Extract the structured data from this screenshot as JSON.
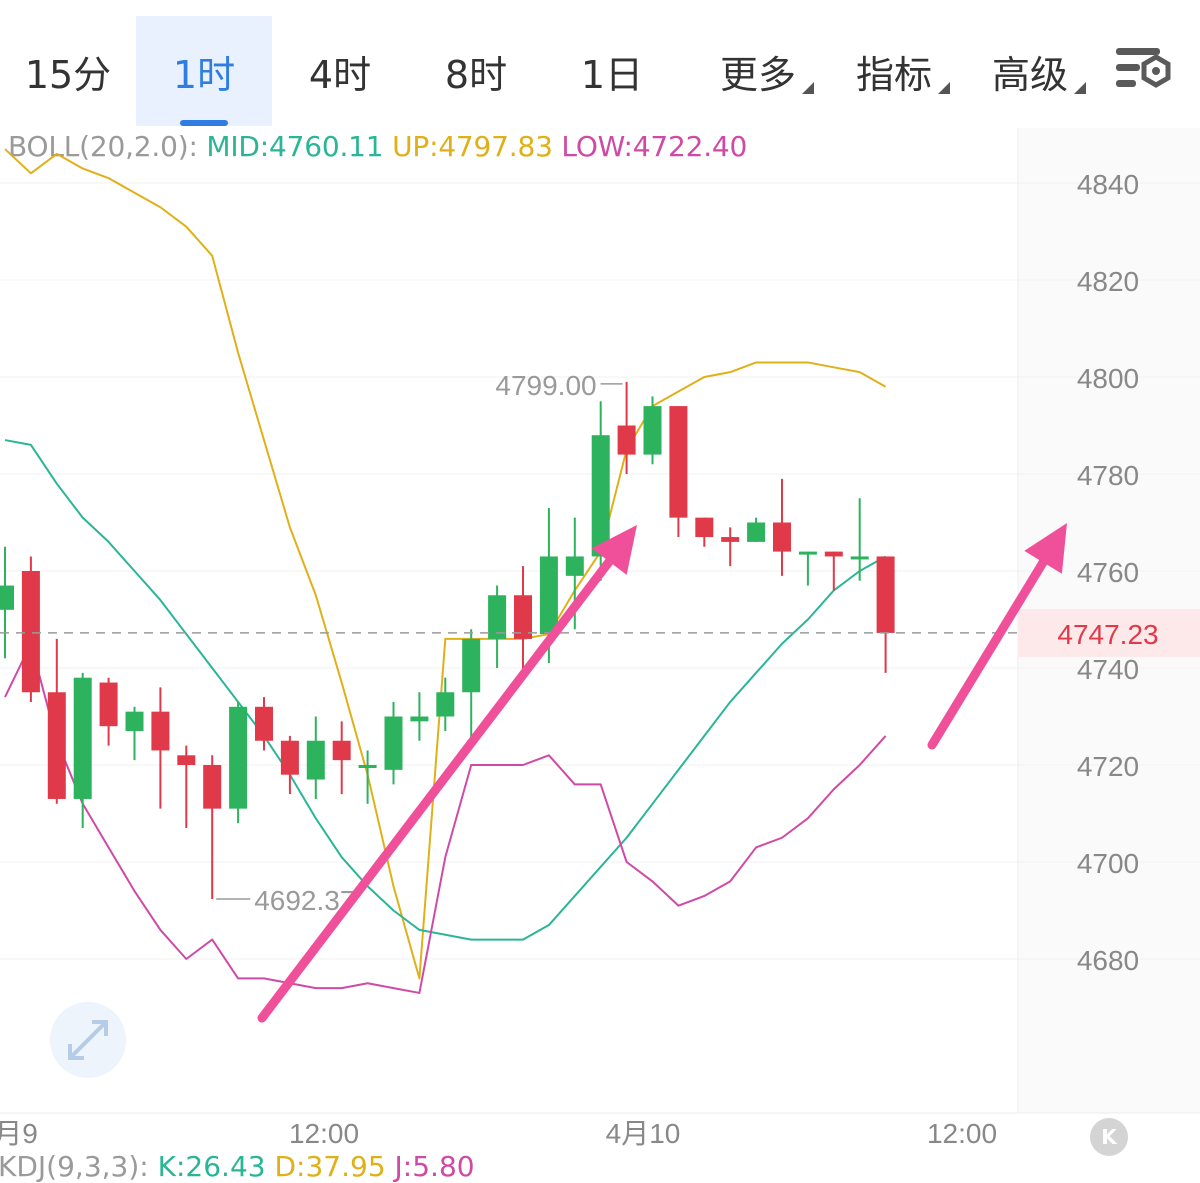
{
  "toolbar": {
    "tabs": [
      {
        "label": "15分"
      },
      {
        "label": "1时"
      },
      {
        "label": "4时"
      },
      {
        "label": "8时"
      },
      {
        "label": "1日"
      },
      {
        "label": "更多"
      },
      {
        "label": "指标"
      },
      {
        "label": "高级"
      }
    ],
    "active_tab": "1时",
    "settings_icon": "chart-settings-icon"
  },
  "indicator": {
    "name": "BOLL(20,2.0):",
    "mid": "MID:4760.11",
    "up": "UP:4797.83",
    "low": "LOW:4722.40"
  },
  "kdj": {
    "name": "KDJ(9,3,3):",
    "k": "K:26.43",
    "d": "D:37.95",
    "j": "J:5.80"
  },
  "colors": {
    "up": "#2db35d",
    "down": "#e0394a",
    "mid": "#2bb597",
    "upper": "#e0b019",
    "lower": "#cf4aa6",
    "arrow": "#f0509a",
    "accent": "#2f7de1"
  },
  "chart_data": {
    "type": "candlestick",
    "interval": "1时",
    "y_ticks": [
      4840,
      4820,
      4800,
      4780,
      4760,
      4740,
      4720,
      4700,
      4680
    ],
    "ylim": [
      4676,
      4856
    ],
    "x_labels": [
      "月9",
      "12:00",
      "4月10",
      "12:00"
    ],
    "current_price": 4747.23,
    "high_marker": {
      "label": "4799.00",
      "value": 4799.0
    },
    "low_marker": {
      "label": "4692.37",
      "value": 4692.37
    },
    "candles": [
      {
        "o": 4752,
        "c": 4757,
        "h": 4765,
        "l": 4742
      },
      {
        "o": 4760,
        "c": 4735,
        "h": 4763,
        "l": 4733
      },
      {
        "o": 4735,
        "c": 4713,
        "h": 4746,
        "l": 4712
      },
      {
        "o": 4713,
        "c": 4738,
        "h": 4739,
        "l": 4707
      },
      {
        "o": 4737,
        "c": 4728,
        "h": 4738,
        "l": 4724
      },
      {
        "o": 4727,
        "c": 4731,
        "h": 4732,
        "l": 4721
      },
      {
        "o": 4731,
        "c": 4723,
        "h": 4736,
        "l": 4711
      },
      {
        "o": 4722,
        "c": 4720,
        "h": 4724,
        "l": 4707
      },
      {
        "o": 4720,
        "c": 4711,
        "h": 4722,
        "l": 4692.37
      },
      {
        "o": 4711,
        "c": 4732,
        "h": 4733,
        "l": 4708
      },
      {
        "o": 4732,
        "c": 4725,
        "h": 4734,
        "l": 4723
      },
      {
        "o": 4725,
        "c": 4718,
        "h": 4726,
        "l": 4714
      },
      {
        "o": 4717,
        "c": 4725,
        "h": 4730,
        "l": 4713
      },
      {
        "o": 4725,
        "c": 4721,
        "h": 4729,
        "l": 4714
      },
      {
        "o": 4720,
        "c": 4720,
        "h": 4723,
        "l": 4712
      },
      {
        "o": 4719,
        "c": 4730,
        "h": 4733,
        "l": 4716
      },
      {
        "o": 4729,
        "c": 4730,
        "h": 4735,
        "l": 4725
      },
      {
        "o": 4730,
        "c": 4735,
        "h": 4738,
        "l": 4727
      },
      {
        "o": 4735,
        "c": 4746,
        "h": 4748,
        "l": 4725
      },
      {
        "o": 4746,
        "c": 4755,
        "h": 4757,
        "l": 4740
      },
      {
        "o": 4755,
        "c": 4746,
        "h": 4761,
        "l": 4738
      },
      {
        "o": 4747,
        "c": 4763,
        "h": 4773,
        "l": 4741
      },
      {
        "o": 4759,
        "c": 4763,
        "h": 4771,
        "l": 4748
      },
      {
        "o": 4763,
        "c": 4788,
        "h": 4795,
        "l": 4758
      },
      {
        "o": 4790,
        "c": 4784,
        "h": 4799.0,
        "l": 4780
      },
      {
        "o": 4784,
        "c": 4794,
        "h": 4796,
        "l": 4782
      },
      {
        "o": 4794,
        "c": 4771,
        "h": 4794,
        "l": 4767
      },
      {
        "o": 4771,
        "c": 4767,
        "h": 4771,
        "l": 4765
      },
      {
        "o": 4767,
        "c": 4766,
        "h": 4769,
        "l": 4761
      },
      {
        "o": 4766,
        "c": 4770,
        "h": 4771,
        "l": 4766
      },
      {
        "o": 4770,
        "c": 4764,
        "h": 4779,
        "l": 4759
      },
      {
        "o": 4764,
        "c": 4764,
        "h": 4764,
        "l": 4757
      },
      {
        "o": 4764,
        "c": 4763,
        "h": 4764,
        "l": 4756
      },
      {
        "o": 4763,
        "c": 4763,
        "h": 4775,
        "l": 4758
      },
      {
        "o": 4763,
        "c": 4747.23,
        "h": 4763,
        "l": 4739
      }
    ],
    "series": [
      {
        "key": "UP",
        "values": [
          4847,
          4842,
          4846,
          4843,
          4841,
          4838,
          4835,
          4831,
          4825,
          4805,
          4787,
          4769,
          4755,
          4737,
          4718,
          4695,
          4676,
          4746,
          4746,
          4746,
          4746,
          4747,
          4756,
          4764,
          4785,
          4794,
          4797,
          4800,
          4801,
          4803,
          4803,
          4803,
          4802,
          4801,
          4798
        ]
      },
      {
        "key": "MID",
        "values": [
          4787,
          4786,
          4778,
          4771,
          4766,
          4760,
          4754,
          4747,
          4740,
          4733,
          4726,
          4718,
          4709,
          4701,
          4695,
          4690,
          4686,
          4685,
          4684,
          4684,
          4684,
          4687,
          4693,
          4699,
          4705,
          4712,
          4719,
          4726,
          4733,
          4739,
          4745,
          4750,
          4756,
          4760,
          4763
        ]
      },
      {
        "key": "LOW",
        "values": [
          4734,
          4745,
          4725,
          4712,
          4703,
          4694,
          4686,
          4680,
          4684,
          4676,
          4676,
          4675,
          4674,
          4674,
          4675,
          4674,
          4673,
          4701,
          4720,
          4720,
          4720,
          4722,
          4716,
          4716,
          4700,
          4696,
          4691,
          4693,
          4696,
          4703,
          4705,
          4709,
          4715,
          4720,
          4726
        ]
      }
    ]
  }
}
